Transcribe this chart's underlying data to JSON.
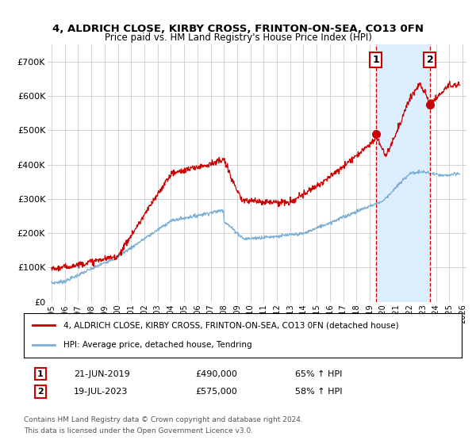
{
  "title_line1": "4, ALDRICH CLOSE, KIRBY CROSS, FRINTON-ON-SEA, CO13 0FN",
  "title_line2": "Price paid vs. HM Land Registry's House Price Index (HPI)",
  "ylim": [
    0,
    750000
  ],
  "yticks": [
    0,
    100000,
    200000,
    300000,
    400000,
    500000,
    600000,
    700000
  ],
  "ytick_labels": [
    "£0",
    "£100K",
    "£200K",
    "£300K",
    "£400K",
    "£500K",
    "£600K",
    "£700K"
  ],
  "xmin_year": 1995,
  "xmax_year": 2026,
  "xticks": [
    1995,
    1996,
    1997,
    1998,
    1999,
    2000,
    2001,
    2002,
    2003,
    2004,
    2005,
    2006,
    2007,
    2008,
    2009,
    2010,
    2011,
    2012,
    2013,
    2014,
    2015,
    2016,
    2017,
    2018,
    2019,
    2020,
    2021,
    2022,
    2023,
    2024,
    2025,
    2026
  ],
  "red_color": "#cc0000",
  "blue_color": "#7bafd4",
  "shade_color": "#ddeeff",
  "vline_color": "#cc0000",
  "grid_color": "#cccccc",
  "background_color": "#ffffff",
  "legend_label_red": "4, ALDRICH CLOSE, KIRBY CROSS, FRINTON-ON-SEA, CO13 0FN (detached house)",
  "legend_label_blue": "HPI: Average price, detached house, Tendring",
  "annotation1_num": "1",
  "annotation1_date": "21-JUN-2019",
  "annotation1_price": "£490,000",
  "annotation1_hpi": "65% ↑ HPI",
  "annotation1_year": 2019.47,
  "annotation1_value": 490000,
  "annotation2_num": "2",
  "annotation2_date": "19-JUL-2023",
  "annotation2_price": "£575,000",
  "annotation2_hpi": "58% ↑ HPI",
  "annotation2_year": 2023.54,
  "annotation2_value": 575000,
  "footnote1": "Contains HM Land Registry data © Crown copyright and database right 2024.",
  "footnote2": "This data is licensed under the Open Government Licence v3.0."
}
